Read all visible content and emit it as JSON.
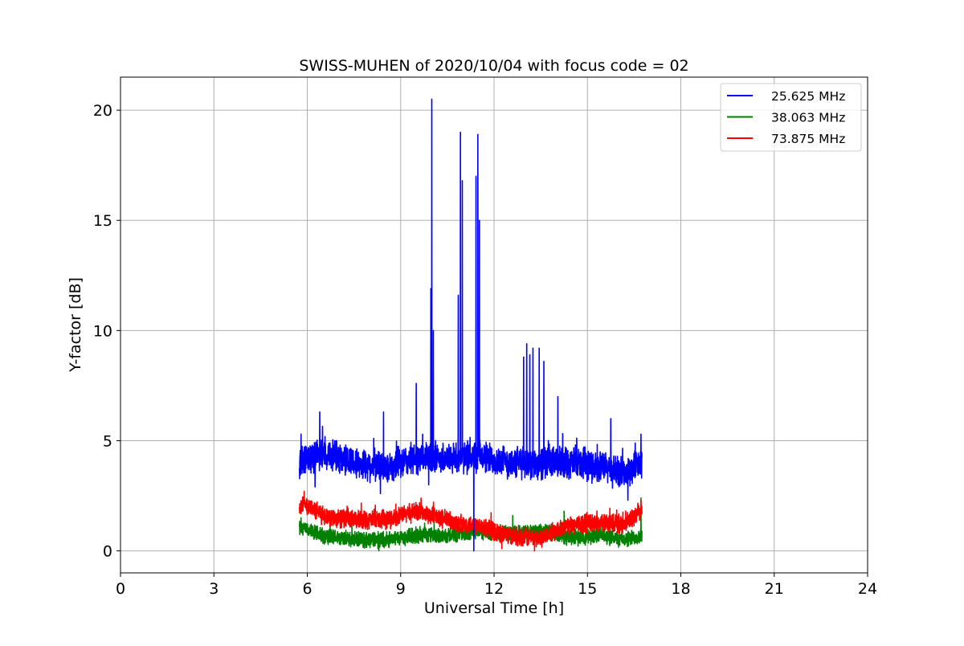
{
  "chart_data": {
    "type": "line",
    "title": "SWISS-MUHEN of 2020/10/04 with focus code = 02",
    "xlabel": "Universal Time [h]",
    "ylabel": "Y-factor [dB]",
    "xlim": [
      0,
      24
    ],
    "ylim": [
      -1,
      21.5
    ],
    "xticks": [
      0,
      3,
      6,
      9,
      12,
      15,
      18,
      21,
      24
    ],
    "yticks": [
      0,
      5,
      10,
      15,
      20
    ],
    "grid": true,
    "legend_position": "top-right",
    "series": [
      {
        "name": "25.625 MHz",
        "color": "#0000ff",
        "baseline": [
          [
            5.75,
            4.0
          ],
          [
            6.5,
            4.5
          ],
          [
            7.5,
            4.0
          ],
          [
            8.5,
            3.8
          ],
          [
            9.5,
            4.2
          ],
          [
            10.5,
            4.2
          ],
          [
            11.5,
            4.3
          ],
          [
            12.5,
            4.0
          ],
          [
            13.5,
            4.0
          ],
          [
            14.5,
            4.0
          ],
          [
            15.5,
            3.8
          ],
          [
            16.2,
            3.5
          ],
          [
            16.75,
            4.0
          ]
        ],
        "spread": 0.6,
        "spikes": [
          [
            5.8,
            5.3
          ],
          [
            6.25,
            2.9
          ],
          [
            6.4,
            6.3
          ],
          [
            8.35,
            2.6
          ],
          [
            8.45,
            6.3
          ],
          [
            9.5,
            7.6
          ],
          [
            9.9,
            3.0
          ],
          [
            9.97,
            11.9
          ],
          [
            10.0,
            20.5
          ],
          [
            10.05,
            10.0
          ],
          [
            10.85,
            11.6
          ],
          [
            10.92,
            19.0
          ],
          [
            10.98,
            16.8
          ],
          [
            11.08,
            4.0
          ],
          [
            11.35,
            0.0
          ],
          [
            11.42,
            17.0
          ],
          [
            11.48,
            18.9
          ],
          [
            11.53,
            15.0
          ],
          [
            12.95,
            8.8
          ],
          [
            13.05,
            9.4
          ],
          [
            13.15,
            8.9
          ],
          [
            13.25,
            9.2
          ],
          [
            13.45,
            9.2
          ],
          [
            13.6,
            8.6
          ],
          [
            14.05,
            7.0
          ],
          [
            15.75,
            6.0
          ],
          [
            16.3,
            2.3
          ],
          [
            16.72,
            5.3
          ]
        ]
      },
      {
        "name": "38.063 MHz",
        "color": "#008000",
        "baseline": [
          [
            5.75,
            1.0
          ],
          [
            6.5,
            0.7
          ],
          [
            7.5,
            0.5
          ],
          [
            8.5,
            0.5
          ],
          [
            9.5,
            0.7
          ],
          [
            10.5,
            0.7
          ],
          [
            11.5,
            0.9
          ],
          [
            12.0,
            0.8
          ],
          [
            12.5,
            0.8
          ],
          [
            13.5,
            0.9
          ],
          [
            14.5,
            0.6
          ],
          [
            15.5,
            0.7
          ],
          [
            16.2,
            0.5
          ],
          [
            16.75,
            0.7
          ]
        ],
        "spread": 0.3,
        "spikes": [
          [
            5.8,
            1.5
          ],
          [
            8.3,
            0.0
          ],
          [
            12.6,
            1.6
          ],
          [
            14.25,
            1.8
          ],
          [
            16.72,
            2.4
          ]
        ]
      },
      {
        "name": "73.875 MHz",
        "color": "#ff0000",
        "baseline": [
          [
            5.75,
            2.0
          ],
          [
            6.0,
            2.1
          ],
          [
            6.5,
            1.6
          ],
          [
            7.5,
            1.4
          ],
          [
            8.5,
            1.4
          ],
          [
            9.5,
            1.8
          ],
          [
            10.5,
            1.4
          ],
          [
            11.0,
            1.2
          ],
          [
            11.5,
            1.2
          ],
          [
            12.0,
            0.9
          ],
          [
            12.5,
            0.7
          ],
          [
            13.0,
            0.6
          ],
          [
            13.5,
            0.6
          ],
          [
            14.0,
            0.9
          ],
          [
            14.5,
            1.2
          ],
          [
            15.5,
            1.3
          ],
          [
            16.2,
            1.2
          ],
          [
            16.75,
            1.8
          ]
        ],
        "spread": 0.35,
        "spikes": [
          [
            5.9,
            2.7
          ],
          [
            12.25,
            0.1
          ],
          [
            13.3,
            0.0
          ],
          [
            16.72,
            2.3
          ]
        ]
      }
    ]
  }
}
